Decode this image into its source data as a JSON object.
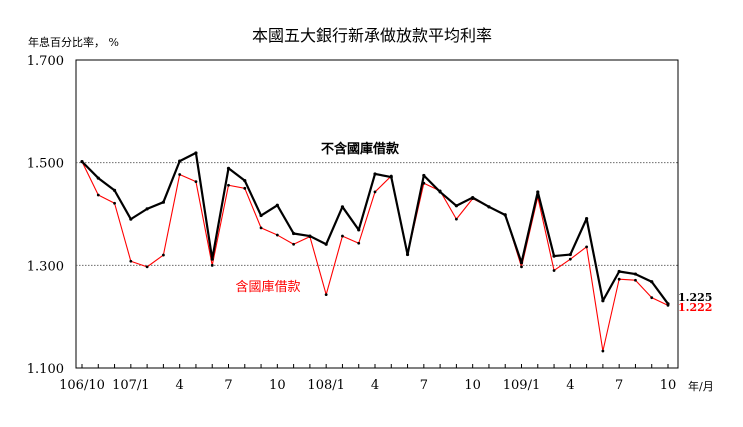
{
  "chart_data": {
    "type": "line",
    "title": "本國五大銀行新承做放款平均利率",
    "ylabel": "年息百分比率， %",
    "xlabel": "年/月",
    "ylim": [
      1.1,
      1.7
    ],
    "y_ticks": [
      "1.700",
      "1.500",
      "1.300",
      "1.100"
    ],
    "y_tick_values": [
      1.7,
      1.5,
      1.3,
      1.1
    ],
    "gridlines": [
      1.5,
      1.3
    ],
    "x": [
      "106/10",
      "106/11",
      "106/12",
      "107/1",
      "107/2",
      "107/3",
      "107/4",
      "107/5",
      "107/6",
      "107/7",
      "107/8",
      "107/9",
      "107/10",
      "107/11",
      "107/12",
      "108/1",
      "108/2",
      "108/3",
      "108/4",
      "108/5",
      "108/6",
      "108/7",
      "108/8",
      "108/9",
      "108/10",
      "108/11",
      "108/12",
      "109/1",
      "109/2",
      "109/3",
      "109/4",
      "109/5",
      "109/6",
      "109/7",
      "109/8",
      "109/9",
      "109/10"
    ],
    "x_tick_labels": [
      {
        "index": 0,
        "label": "106/10"
      },
      {
        "index": 3,
        "label": "107/1"
      },
      {
        "index": 6,
        "label": "4"
      },
      {
        "index": 9,
        "label": "7"
      },
      {
        "index": 12,
        "label": "10"
      },
      {
        "index": 15,
        "label": "108/1"
      },
      {
        "index": 18,
        "label": "4"
      },
      {
        "index": 21,
        "label": "7"
      },
      {
        "index": 24,
        "label": "10"
      },
      {
        "index": 27,
        "label": "109/1"
      },
      {
        "index": 30,
        "label": "4"
      },
      {
        "index": 33,
        "label": "7"
      },
      {
        "index": 36,
        "label": "10"
      }
    ],
    "series": [
      {
        "name": "不含國庫借款",
        "color": "#000000",
        "values": [
          1.502,
          1.47,
          1.446,
          1.39,
          1.41,
          1.423,
          1.503,
          1.519,
          1.312,
          1.489,
          1.465,
          1.397,
          1.417,
          1.362,
          1.357,
          1.341,
          1.414,
          1.369,
          1.478,
          1.472,
          1.321,
          1.475,
          1.443,
          1.416,
          1.432,
          1.414,
          1.398,
          1.305,
          1.443,
          1.318,
          1.321,
          1.391,
          1.231,
          1.288,
          1.283,
          1.268,
          1.225
        ],
        "end_label": "1.225"
      },
      {
        "name": "含國庫借款",
        "color": "#ff0000",
        "values": [
          1.502,
          1.437,
          1.421,
          1.308,
          1.297,
          1.32,
          1.477,
          1.463,
          1.3,
          1.456,
          1.45,
          1.373,
          1.359,
          1.341,
          1.356,
          1.243,
          1.357,
          1.343,
          1.443,
          1.474,
          1.321,
          1.46,
          1.445,
          1.39,
          1.43,
          1.414,
          1.399,
          1.297,
          1.433,
          1.29,
          1.312,
          1.336,
          1.133,
          1.273,
          1.271,
          1.237,
          1.222
        ],
        "end_label": "1.222"
      }
    ]
  }
}
